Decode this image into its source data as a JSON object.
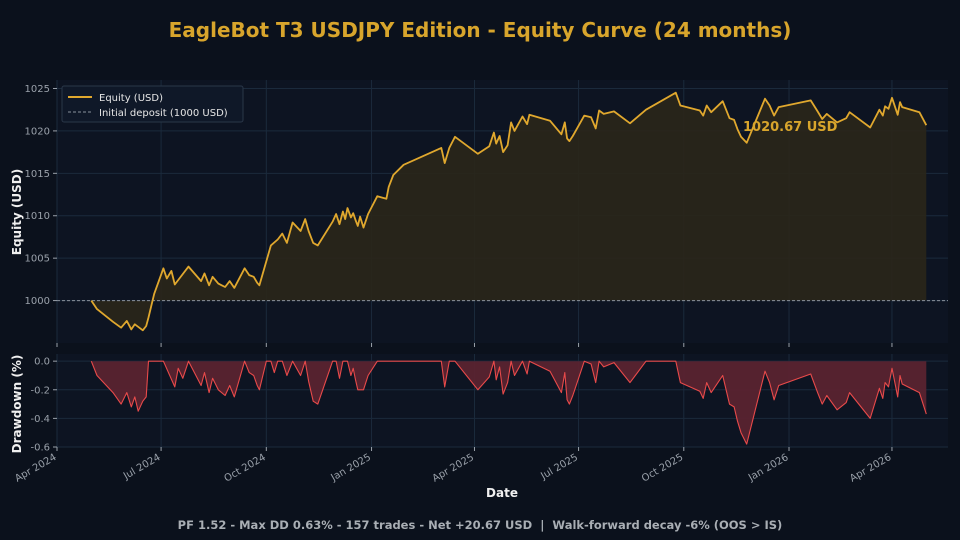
{
  "colors": {
    "background": "#0b111c",
    "panel": "#0d1422",
    "title": "#d8a52c",
    "equity": "#e0a82e",
    "equity_fill": "#2a2619",
    "baseline": "#8a929c",
    "drawdown": "#e84a4a",
    "drawdown_fill": "#5a2330",
    "grid": "#1b2a3c",
    "tick": "#9aa1aa",
    "label": "#f0f0f0",
    "footer": "#a9aeb4"
  },
  "chart_data": {
    "type": "line",
    "title": "EagleBot T3 USDJPY Edition - Equity Curve (24 months)",
    "xlabel": "Date",
    "x_range": [
      "2024-04-01",
      "2026-05-20"
    ],
    "x_ticks": [
      {
        "date": "2024-04-01",
        "label": "Apr 2024"
      },
      {
        "date": "2024-07-01",
        "label": "Jul 2024"
      },
      {
        "date": "2024-10-01",
        "label": "Oct 2024"
      },
      {
        "date": "2025-01-01",
        "label": "Jan 2025"
      },
      {
        "date": "2025-04-01",
        "label": "Apr 2025"
      },
      {
        "date": "2025-07-01",
        "label": "Jul 2025"
      },
      {
        "date": "2025-10-01",
        "label": "Oct 2025"
      },
      {
        "date": "2026-01-01",
        "label": "Jan 2026"
      },
      {
        "date": "2026-04-01",
        "label": "Apr 2026"
      }
    ],
    "legend_position": "top-left",
    "equity_panel": {
      "ylabel": "Equity (USD)",
      "ylim": [
        995,
        1026
      ],
      "y_ticks": [
        1000,
        1005,
        1010,
        1015,
        1020,
        1025
      ],
      "series": [
        {
          "name": "Equity (USD)",
          "x": [
            "2024-05-01",
            "2024-05-06",
            "2024-05-20",
            "2024-05-27",
            "2024-06-01",
            "2024-06-05",
            "2024-06-08",
            "2024-06-15",
            "2024-06-18",
            "2024-06-20",
            "2024-06-25",
            "2024-07-03",
            "2024-07-06",
            "2024-07-10",
            "2024-07-13",
            "2024-07-25",
            "2024-08-05",
            "2024-08-08",
            "2024-08-12",
            "2024-08-15",
            "2024-08-20",
            "2024-08-23",
            "2024-08-26",
            "2024-08-30",
            "2024-09-03",
            "2024-09-12",
            "2024-09-16",
            "2024-09-20",
            "2024-09-23",
            "2024-09-25",
            "2024-10-05",
            "2024-10-11",
            "2024-10-15",
            "2024-10-19",
            "2024-10-24",
            "2024-10-31",
            "2024-11-04",
            "2024-11-07",
            "2024-11-11",
            "2024-11-15",
            "2024-11-28",
            "2024-12-01",
            "2024-12-04",
            "2024-12-07",
            "2024-12-09",
            "2024-12-11",
            "2024-12-14",
            "2024-12-16",
            "2024-12-18",
            "2024-12-20",
            "2024-12-22",
            "2024-12-25",
            "2024-12-29",
            "2025-01-06",
            "2025-01-14",
            "2025-01-16",
            "2025-01-20",
            "2025-01-29",
            "2025-03-03",
            "2025-03-06",
            "2025-03-10",
            "2025-03-15",
            "2025-04-04",
            "2025-04-14",
            "2025-04-18",
            "2025-04-20",
            "2025-04-23",
            "2025-04-26",
            "2025-04-30",
            "2025-05-03",
            "2025-05-06",
            "2025-05-13",
            "2025-05-17",
            "2025-05-19",
            "2025-06-06",
            "2025-06-16",
            "2025-06-19",
            "2025-06-21",
            "2025-06-23",
            "2025-06-26",
            "2025-07-06",
            "2025-07-12",
            "2025-07-16",
            "2025-07-19",
            "2025-07-23",
            "2025-08-01",
            "2025-08-15",
            "2025-08-29",
            "2025-09-24",
            "2025-09-28",
            "2025-10-15",
            "2025-10-18",
            "2025-10-21",
            "2025-10-25",
            "2025-11-04",
            "2025-11-10",
            "2025-11-14",
            "2025-11-17",
            "2025-11-20",
            "2025-11-25",
            "2025-12-11",
            "2025-12-15",
            "2025-12-19",
            "2025-12-23",
            "2026-01-20",
            "2026-01-26",
            "2026-01-30",
            "2026-02-03",
            "2026-02-12",
            "2026-02-20",
            "2026-02-23",
            "2026-03-13",
            "2026-03-21",
            "2026-03-24",
            "2026-03-26",
            "2026-03-29",
            "2026-04-01",
            "2026-04-06",
            "2026-04-08",
            "2026-04-10",
            "2026-04-25",
            "2026-05-01"
          ],
          "y": [
            1000.0,
            999.0,
            997.5,
            996.8,
            997.6,
            996.6,
            997.2,
            996.5,
            997.0,
            998.0,
            1000.8,
            1003.8,
            1002.6,
            1003.5,
            1001.9,
            1004.0,
            1002.3,
            1003.2,
            1001.8,
            1002.8,
            1002.0,
            1001.8,
            1001.6,
            1002.3,
            1001.5,
            1003.8,
            1003.0,
            1002.8,
            1002.1,
            1001.8,
            1006.5,
            1007.2,
            1007.9,
            1006.8,
            1009.2,
            1008.2,
            1009.6,
            1008.2,
            1006.8,
            1006.5,
            1009.3,
            1010.2,
            1009.0,
            1010.5,
            1009.6,
            1010.9,
            1009.8,
            1010.3,
            1009.5,
            1008.8,
            1009.9,
            1008.6,
            1010.2,
            1012.3,
            1012.0,
            1013.4,
            1014.8,
            1016.0,
            1018.0,
            1016.2,
            1018.0,
            1019.3,
            1017.3,
            1018.2,
            1019.8,
            1018.5,
            1019.4,
            1017.5,
            1018.3,
            1021.0,
            1020.0,
            1021.7,
            1020.8,
            1021.9,
            1021.2,
            1019.6,
            1021.0,
            1019.1,
            1018.8,
            1019.4,
            1021.8,
            1021.6,
            1020.3,
            1022.4,
            1022.0,
            1022.3,
            1020.9,
            1022.5,
            1024.5,
            1023.0,
            1022.4,
            1021.8,
            1023.0,
            1022.2,
            1023.5,
            1021.5,
            1021.3,
            1020.2,
            1019.3,
            1018.6,
            1023.8,
            1023.0,
            1021.8,
            1022.8,
            1023.6,
            1022.3,
            1021.4,
            1022.0,
            1021.0,
            1021.5,
            1022.2,
            1020.4,
            1022.5,
            1021.8,
            1022.9,
            1022.6,
            1023.9,
            1021.9,
            1023.4,
            1022.8,
            1022.2,
            1020.67
          ]
        },
        {
          "name": "Initial deposit (1000 USD)",
          "value": 1000
        }
      ],
      "annotation": "1020.67 USD"
    },
    "drawdown_panel": {
      "ylabel": "Drawdown (%)",
      "ylim": [
        -0.6,
        0.05
      ],
      "y_ticks": [
        {
          "value": 0.0,
          "label": "0.0"
        },
        {
          "value": -0.2,
          "label": "-0.2"
        },
        {
          "value": -0.4,
          "label": "-0.4"
        },
        {
          "value": -0.6,
          "label": "-0.6"
        }
      ],
      "x": [
        "2024-05-01",
        "2024-05-06",
        "2024-05-20",
        "2024-05-27",
        "2024-06-01",
        "2024-06-05",
        "2024-06-08",
        "2024-06-11",
        "2024-06-15",
        "2024-06-18",
        "2024-06-20",
        "2024-06-25",
        "2024-07-03",
        "2024-07-13",
        "2024-07-16",
        "2024-07-20",
        "2024-07-25",
        "2024-08-05",
        "2024-08-08",
        "2024-08-12",
        "2024-08-15",
        "2024-08-20",
        "2024-08-26",
        "2024-08-30",
        "2024-09-03",
        "2024-09-12",
        "2024-09-16",
        "2024-09-20",
        "2024-09-23",
        "2024-09-25",
        "2024-10-01",
        "2024-10-05",
        "2024-10-08",
        "2024-10-11",
        "2024-10-15",
        "2024-10-19",
        "2024-10-24",
        "2024-10-31",
        "2024-11-04",
        "2024-11-07",
        "2024-11-11",
        "2024-11-15",
        "2024-11-28",
        "2024-12-01",
        "2024-12-04",
        "2024-12-07",
        "2024-12-11",
        "2024-12-14",
        "2024-12-16",
        "2024-12-18",
        "2024-12-20",
        "2024-12-25",
        "2024-12-29",
        "2025-01-06",
        "2025-01-20",
        "2025-01-29",
        "2025-03-03",
        "2025-03-06",
        "2025-03-10",
        "2025-03-15",
        "2025-04-04",
        "2025-04-14",
        "2025-04-18",
        "2025-04-20",
        "2025-04-23",
        "2025-04-26",
        "2025-04-30",
        "2025-05-03",
        "2025-05-06",
        "2025-05-13",
        "2025-05-17",
        "2025-05-19",
        "2025-06-06",
        "2025-06-16",
        "2025-06-19",
        "2025-06-21",
        "2025-06-23",
        "2025-06-26",
        "2025-07-06",
        "2025-07-12",
        "2025-07-16",
        "2025-07-19",
        "2025-07-23",
        "2025-08-01",
        "2025-08-15",
        "2025-08-29",
        "2025-09-24",
        "2025-09-28",
        "2025-10-15",
        "2025-10-18",
        "2025-10-21",
        "2025-10-25",
        "2025-11-04",
        "2025-11-10",
        "2025-11-14",
        "2025-11-17",
        "2025-11-20",
        "2025-11-25",
        "2025-12-11",
        "2025-12-15",
        "2025-12-19",
        "2025-12-23",
        "2026-01-20",
        "2026-01-26",
        "2026-01-30",
        "2026-02-03",
        "2026-02-12",
        "2026-02-20",
        "2026-02-23",
        "2026-03-13",
        "2026-03-21",
        "2026-03-24",
        "2026-03-26",
        "2026-03-29",
        "2026-04-01",
        "2026-04-06",
        "2026-04-08",
        "2026-04-10",
        "2026-04-25",
        "2026-05-01"
      ],
      "values": [
        0.0,
        -0.1,
        -0.22,
        -0.3,
        -0.22,
        -0.32,
        -0.25,
        -0.35,
        -0.28,
        -0.25,
        0.0,
        0.0,
        0.0,
        -0.18,
        -0.05,
        -0.12,
        0.0,
        -0.17,
        -0.08,
        -0.22,
        -0.12,
        -0.2,
        -0.24,
        -0.17,
        -0.25,
        0.0,
        -0.08,
        -0.1,
        -0.17,
        -0.2,
        0.0,
        0.0,
        -0.08,
        0.0,
        0.0,
        -0.1,
        0.0,
        -0.1,
        0.0,
        -0.14,
        -0.28,
        -0.3,
        0.0,
        0.0,
        -0.12,
        0.0,
        0.0,
        -0.1,
        -0.05,
        -0.13,
        -0.2,
        -0.2,
        -0.1,
        0.0,
        0.0,
        0.0,
        0.0,
        -0.18,
        0.0,
        0.0,
        -0.2,
        -0.11,
        0.0,
        -0.13,
        -0.04,
        -0.23,
        -0.15,
        0.0,
        -0.1,
        0.0,
        -0.09,
        0.0,
        -0.07,
        -0.22,
        -0.08,
        -0.27,
        -0.3,
        -0.24,
        0.0,
        -0.02,
        -0.15,
        0.0,
        -0.04,
        -0.01,
        -0.15,
        0.0,
        0.0,
        -0.15,
        -0.21,
        -0.26,
        -0.15,
        -0.22,
        -0.1,
        -0.3,
        -0.32,
        -0.42,
        -0.5,
        -0.58,
        -0.07,
        -0.15,
        -0.27,
        -0.17,
        -0.09,
        -0.22,
        -0.3,
        -0.24,
        -0.34,
        -0.29,
        -0.22,
        -0.4,
        -0.19,
        -0.26,
        -0.15,
        -0.18,
        -0.05,
        -0.25,
        -0.1,
        -0.16,
        -0.22,
        -0.37
      ]
    }
  },
  "footer": {
    "text": "PF 1.52 - Max DD 0.63% - 157 trades - Net +20.67 USD  |  Walk-forward decay -6% (OOS > IS)"
  }
}
